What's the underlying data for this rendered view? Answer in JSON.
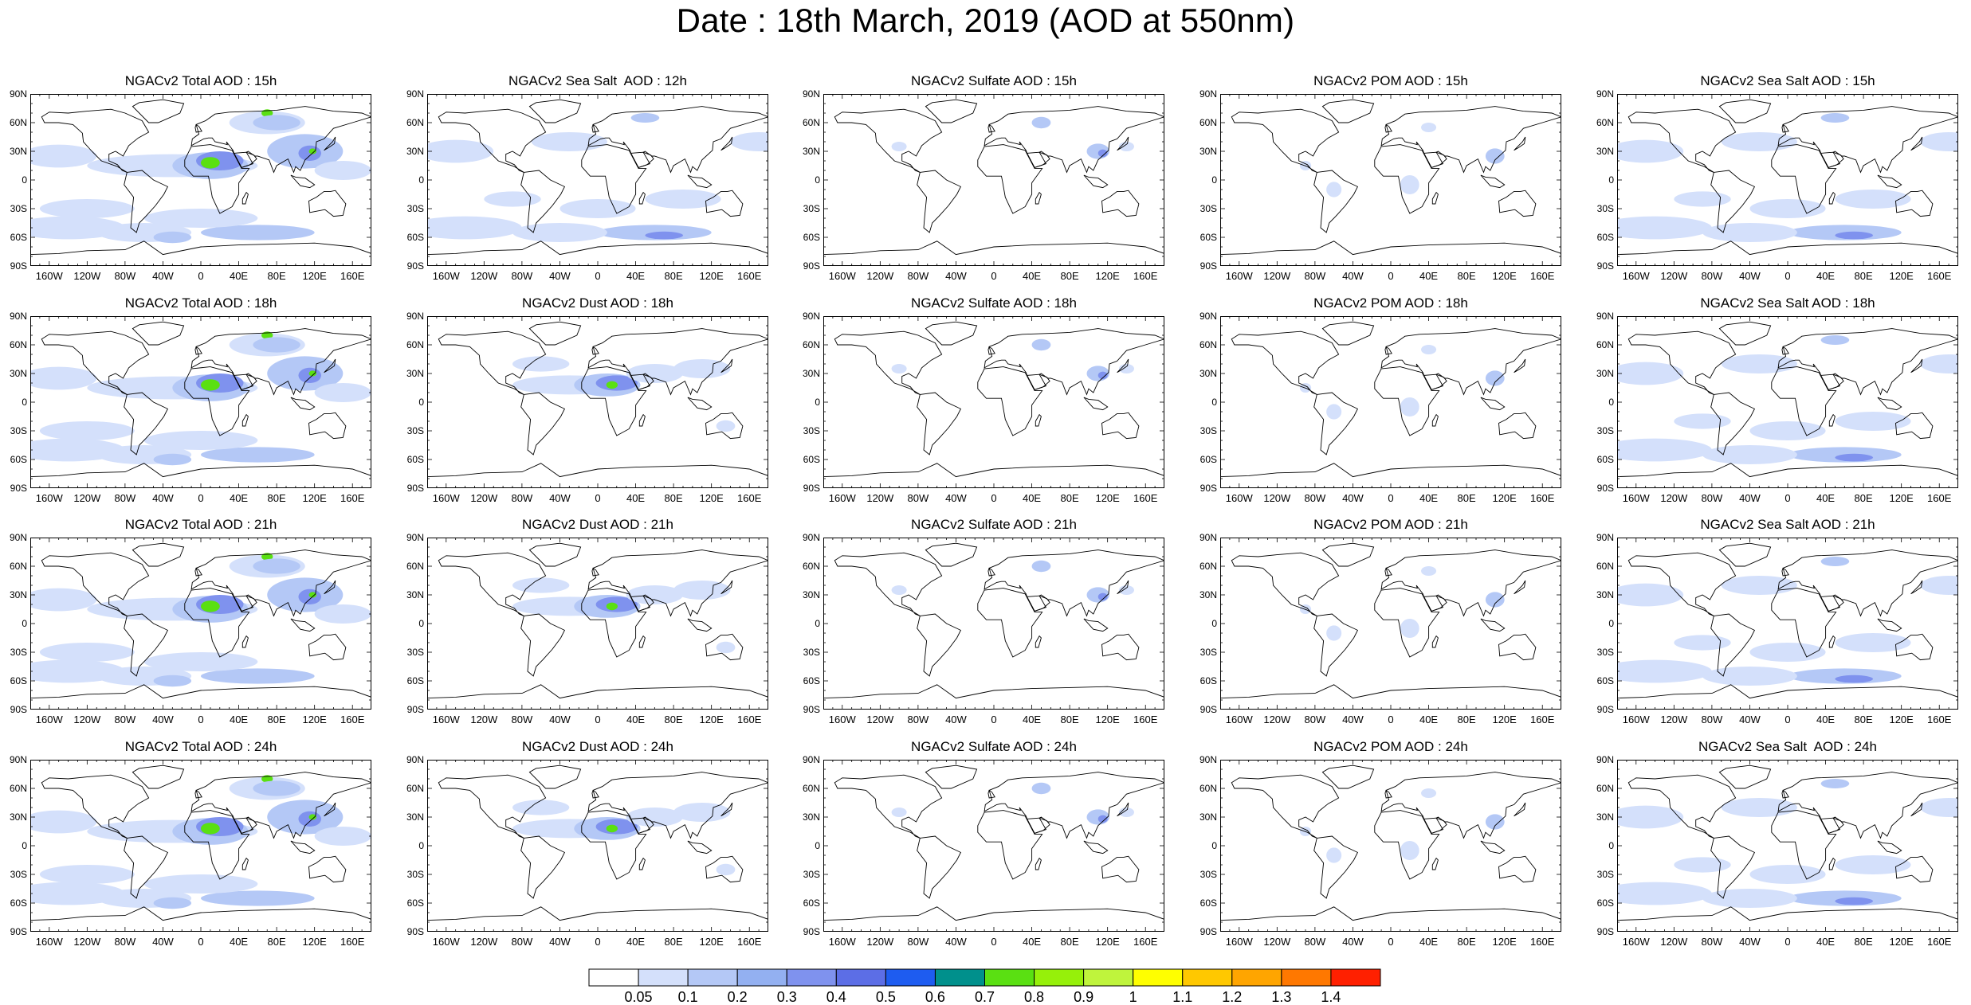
{
  "title": "Date : 18th March, 2019 (AOD at 550nm)",
  "panels": [
    [
      "NGACv2 Total AOD : 15h",
      "NGACv2 Sea Salt  AOD : 12h",
      "NGACv2 Sulfate AOD : 15h",
      "NGACv2 POM AOD : 15h",
      "NGACv2 Sea Salt AOD : 15h"
    ],
    [
      "NGACv2 Total AOD : 18h",
      "NGACv2 Dust AOD : 18h",
      "NGACv2 Sulfate AOD : 18h",
      "NGACv2 POM AOD : 18h",
      "NGACv2 Sea Salt AOD : 18h"
    ],
    [
      "NGACv2 Total AOD : 21h",
      "NGACv2 Dust AOD : 21h",
      "NGACv2 Sulfate AOD : 21h",
      "NGACv2 POM AOD : 21h",
      "NGACv2 Sea Salt AOD : 21h"
    ],
    [
      "NGACv2 Total AOD : 24h",
      "NGACv2 Dust AOD : 24h",
      "NGACv2 Sulfate AOD : 24h",
      "NGACv2 POM AOD : 24h",
      "NGACv2 Sea Salt  AOD : 24h"
    ]
  ],
  "lat_ticks": [
    "90N",
    "60N",
    "30N",
    "0",
    "30S",
    "60S",
    "90S"
  ],
  "lon_ticks": [
    "160W",
    "120W",
    "80W",
    "40W",
    "0",
    "40E",
    "80E",
    "120E",
    "160E"
  ],
  "colorbar": {
    "labels": [
      "0.05",
      "0.1",
      "0.2",
      "0.3",
      "0.4",
      "0.5",
      "0.6",
      "0.7",
      "0.8",
      "0.9",
      "1",
      "1.1",
      "1.2",
      "1.3",
      "1.4"
    ],
    "colors": [
      "#ffffff",
      "#d4e0fb",
      "#b4c8f6",
      "#93b0f1",
      "#7f92ee",
      "#5c6ee6",
      "#1e5cf0",
      "#00908c",
      "#5ae012",
      "#96f00a",
      "#bff43c",
      "#ffff00",
      "#ffc800",
      "#ffa500",
      "#ff7800",
      "#ff2000"
    ]
  },
  "map_colors": {
    "light": "#d4e0fb",
    "mid": "#b4c8f6",
    "dark": "#7f92ee",
    "green": "#5ae012",
    "coast": "#000000"
  }
}
